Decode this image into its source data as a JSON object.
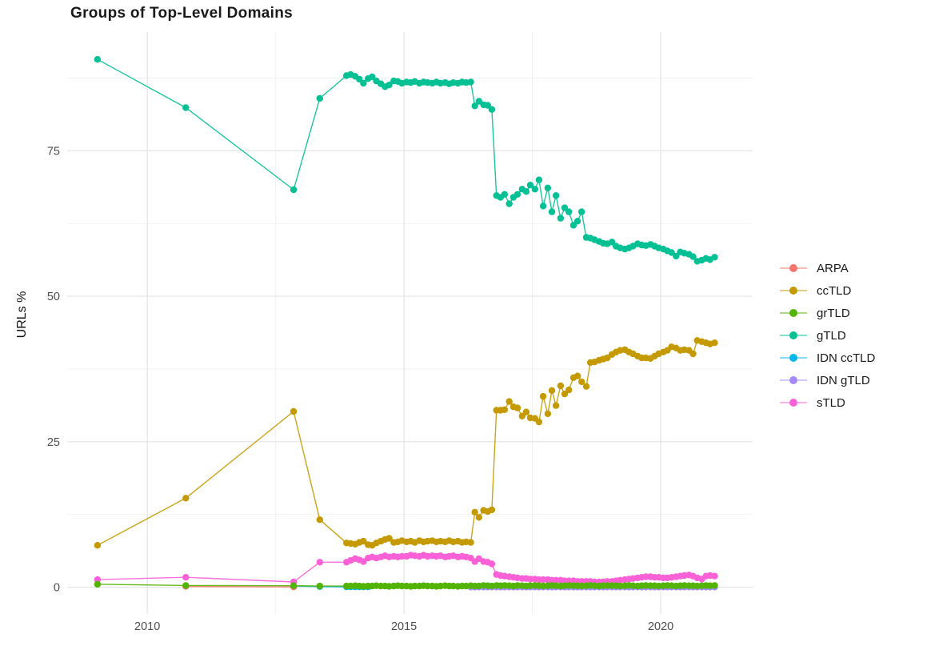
{
  "chart_data": {
    "type": "line",
    "title": "Groups of Top-Level Domains",
    "xlabel": "",
    "ylabel": "URLs %",
    "x_ticks": [
      2010,
      2015,
      2020
    ],
    "x_minor_ticks": [
      2012.5,
      2017.5
    ],
    "y_ticks": [
      0,
      25,
      50,
      75
    ],
    "y_minor_ticks": [
      12.5,
      37.5,
      62.5,
      87.5
    ],
    "xlim": [
      2008.44,
      2021.79
    ],
    "ylim": [
      -4.6,
      95.4
    ],
    "grid": true,
    "legend_position": "right",
    "draw_order": [
      "IDN gTLD",
      "IDN ccTLD",
      "ARPA",
      "sTLD",
      "ccTLD",
      "gTLD",
      "grTLD"
    ],
    "x_sparse": [
      2009.03,
      2010.75,
      2012.85,
      2013.36
    ],
    "x_dense": [
      2013.88,
      2013.96,
      2014.05,
      2014.13,
      2014.21,
      2014.3,
      2014.38,
      2014.46,
      2014.55,
      2014.63,
      2014.71,
      2014.8,
      2014.88,
      2014.96,
      2015.05,
      2015.13,
      2015.21,
      2015.3,
      2015.38,
      2015.46,
      2015.55,
      2015.63,
      2015.71,
      2015.8,
      2015.88,
      2015.96,
      2016.05,
      2016.13,
      2016.21,
      2016.3,
      2016.38,
      2016.46,
      2016.55,
      2016.63,
      2016.71,
      2016.8,
      2016.88,
      2016.96,
      2017.05,
      2017.13,
      2017.21,
      2017.3,
      2017.38,
      2017.46,
      2017.55,
      2017.63,
      2017.71,
      2017.8,
      2017.88,
      2017.96,
      2018.05,
      2018.13,
      2018.21,
      2018.3,
      2018.38,
      2018.46,
      2018.55,
      2018.63,
      2018.71,
      2018.8,
      2018.88,
      2018.96,
      2019.05,
      2019.13,
      2019.21,
      2019.3,
      2019.38,
      2019.46,
      2019.55,
      2019.63,
      2019.71,
      2019.8,
      2019.88,
      2019.96,
      2020.05,
      2020.13,
      2020.21,
      2020.3,
      2020.38,
      2020.46,
      2020.55,
      2020.63,
      2020.71,
      2020.8,
      2020.88,
      2020.96,
      2021.05
    ],
    "series": [
      {
        "name": "ARPA",
        "color": "#F8766D",
        "x": [
          2010.75,
          2012.85
        ],
        "y": [
          0.15,
          0.05
        ]
      },
      {
        "name": "ccTLD",
        "color": "#C49A00",
        "x": "sparse+dense",
        "y": [
          7.2,
          15.3,
          30.2,
          11.6,
          7.6,
          7.5,
          7.4,
          7.7,
          7.9,
          7.3,
          7.2,
          7.6,
          7.9,
          8.2,
          8.4,
          7.7,
          7.8,
          8.0,
          7.8,
          7.9,
          7.7,
          8.0,
          7.8,
          7.9,
          8.0,
          7.8,
          7.9,
          7.8,
          8.0,
          7.8,
          7.9,
          7.7,
          7.8,
          7.7,
          12.9,
          12.0,
          13.2,
          13.0,
          13.3,
          30.4,
          30.4,
          30.5,
          31.9,
          31.0,
          30.8,
          29.4,
          30.1,
          29.1,
          29.0,
          28.4,
          32.8,
          29.8,
          33.8,
          31.2,
          34.6,
          33.2,
          33.9,
          36.0,
          36.3,
          35.3,
          34.5,
          38.6,
          38.7,
          39.0,
          39.2,
          39.4,
          40.0,
          40.4,
          40.7,
          40.8,
          40.4,
          40.1,
          39.7,
          39.4,
          39.4,
          39.3,
          39.7,
          40.1,
          40.4,
          40.7,
          41.3,
          41.1,
          40.7,
          40.8,
          40.7,
          40.1,
          42.4,
          42.2,
          42.0,
          41.8,
          42.0
        ]
      },
      {
        "name": "grTLD",
        "color": "#53B400",
        "x": "sparse+dense",
        "y": [
          0.5,
          0.3,
          0.25,
          0.2,
          0.2,
          0.2,
          0.25,
          0.2,
          0.15,
          0.2,
          0.2,
          0.25,
          0.2,
          0.2,
          0.15,
          0.2,
          0.25,
          0.2,
          0.2,
          0.15,
          0.2,
          0.2,
          0.25,
          0.2,
          0.2,
          0.15,
          0.2,
          0.25,
          0.2,
          0.2,
          0.15,
          0.2,
          0.2,
          0.25,
          0.2,
          0.2,
          0.3,
          0.25,
          0.2,
          0.3,
          0.25,
          0.3,
          0.25,
          0.2,
          0.3,
          0.25,
          0.2,
          0.25,
          0.3,
          0.25,
          0.2,
          0.25,
          0.3,
          0.25,
          0.2,
          0.25,
          0.3,
          0.25,
          0.25,
          0.2,
          0.25,
          0.3,
          0.25,
          0.2,
          0.25,
          0.3,
          0.25,
          0.25,
          0.2,
          0.25,
          0.3,
          0.25,
          0.2,
          0.25,
          0.3,
          0.25,
          0.25,
          0.2,
          0.25,
          0.3,
          0.25,
          0.2,
          0.25,
          0.3,
          0.25,
          0.25,
          0.2,
          0.25,
          0.3,
          0.25,
          0.3
        ]
      },
      {
        "name": "gTLD",
        "color": "#00C094",
        "x": "sparse+dense",
        "y": [
          90.7,
          82.4,
          68.3,
          84.0,
          87.9,
          88.1,
          87.8,
          87.3,
          86.6,
          87.4,
          87.7,
          87.0,
          86.5,
          86.0,
          86.3,
          87.0,
          86.9,
          86.6,
          86.8,
          86.7,
          86.9,
          86.6,
          86.8,
          86.7,
          86.6,
          86.8,
          86.6,
          86.7,
          86.5,
          86.7,
          86.6,
          86.8,
          86.7,
          86.8,
          82.7,
          83.5,
          82.9,
          82.8,
          82.1,
          67.3,
          67.0,
          67.5,
          65.9,
          67.0,
          67.5,
          68.4,
          68.0,
          69.1,
          68.4,
          70.0,
          65.5,
          68.6,
          64.5,
          67.3,
          63.4,
          65.2,
          64.5,
          62.2,
          62.9,
          64.5,
          60.1,
          60.0,
          59.7,
          59.4,
          59.1,
          59.0,
          59.3,
          58.6,
          58.3,
          58.1,
          58.3,
          58.6,
          59.0,
          58.8,
          58.7,
          58.9,
          58.6,
          58.3,
          58.1,
          57.8,
          57.5,
          56.9,
          57.6,
          57.4,
          57.2,
          56.8,
          56.0,
          56.2,
          56.5,
          56.3,
          56.7
        ]
      },
      {
        "name": "IDN ccTLD",
        "color": "#00B6EB",
        "x": [
          2012.85,
          2013.36,
          2013.88,
          2013.96,
          2014.05,
          2014.13,
          2014.21,
          2014.3
        ],
        "y": [
          0.2,
          0.1,
          0.05,
          0.05,
          0.05,
          0.05,
          0.05,
          0.05
        ]
      },
      {
        "name": "IDN gTLD",
        "color": "#A58AFF",
        "x": [
          2016.3,
          2016.38,
          2016.46,
          2016.55,
          2016.63,
          2016.71,
          2016.8,
          2016.88,
          2016.96,
          2017.05,
          2017.13,
          2017.21,
          2017.3,
          2017.38,
          2017.46,
          2017.55,
          2017.63,
          2017.71,
          2017.8,
          2017.88,
          2017.96,
          2018.05,
          2018.13,
          2018.21,
          2018.3,
          2018.38,
          2018.46,
          2018.55,
          2018.63,
          2018.71,
          2018.8,
          2018.88,
          2018.96,
          2019.05,
          2019.13,
          2019.21,
          2019.3,
          2019.38,
          2019.46,
          2019.55,
          2019.63,
          2019.71,
          2019.8,
          2019.88,
          2019.96,
          2020.05,
          2020.13,
          2020.21,
          2020.3,
          2020.38,
          2020.46,
          2020.55,
          2020.63,
          2020.71,
          2020.8,
          2020.88,
          2020.96,
          2021.05
        ],
        "y": [
          0.02,
          0.02,
          0.02,
          0.02,
          0.02,
          0.02,
          0.02,
          0.02,
          0.02,
          0.02,
          0.02,
          0.02,
          0.02,
          0.02,
          0.02,
          0.02,
          0.02,
          0.02,
          0.02,
          0.02,
          0.02,
          0.02,
          0.02,
          0.02,
          0.02,
          0.02,
          0.02,
          0.02,
          0.02,
          0.02,
          0.02,
          0.02,
          0.02,
          0.02,
          0.02,
          0.02,
          0.02,
          0.02,
          0.02,
          0.02,
          0.02,
          0.02,
          0.02,
          0.02,
          0.02,
          0.02,
          0.02,
          0.02,
          0.02,
          0.02,
          0.02,
          0.02,
          0.02,
          0.02,
          0.02,
          0.02,
          0.02,
          0.02
        ]
      },
      {
        "name": "sTLD",
        "color": "#FB61D7",
        "x": "sparse+dense",
        "y": [
          1.3,
          1.7,
          0.9,
          4.3,
          4.3,
          4.6,
          4.9,
          4.7,
          4.4,
          5.0,
          5.2,
          5.0,
          5.2,
          5.4,
          5.2,
          5.3,
          5.2,
          5.3,
          5.3,
          5.5,
          5.4,
          5.3,
          5.5,
          5.3,
          5.4,
          5.3,
          5.4,
          5.2,
          5.3,
          5.4,
          5.2,
          5.3,
          5.2,
          5.0,
          4.4,
          4.9,
          4.4,
          4.3,
          4.0,
          2.2,
          2.0,
          1.9,
          1.8,
          1.7,
          1.6,
          1.5,
          1.5,
          1.4,
          1.4,
          1.3,
          1.3,
          1.3,
          1.2,
          1.2,
          1.2,
          1.1,
          1.1,
          1.1,
          1.0,
          1.0,
          1.0,
          1.0,
          0.9,
          0.9,
          0.9,
          1.0,
          1.0,
          1.1,
          1.2,
          1.3,
          1.4,
          1.5,
          1.6,
          1.7,
          1.8,
          1.8,
          1.7,
          1.7,
          1.6,
          1.6,
          1.7,
          1.8,
          1.9,
          2.0,
          2.1,
          1.9,
          1.6,
          1.4,
          1.9,
          2.0,
          1.9
        ]
      }
    ],
    "style": {
      "grid_major_color": "#e3e3e3",
      "grid_minor_color": "#f0f0f0",
      "axis_text_color": "#4d4d4d",
      "background": "#ffffff"
    }
  }
}
